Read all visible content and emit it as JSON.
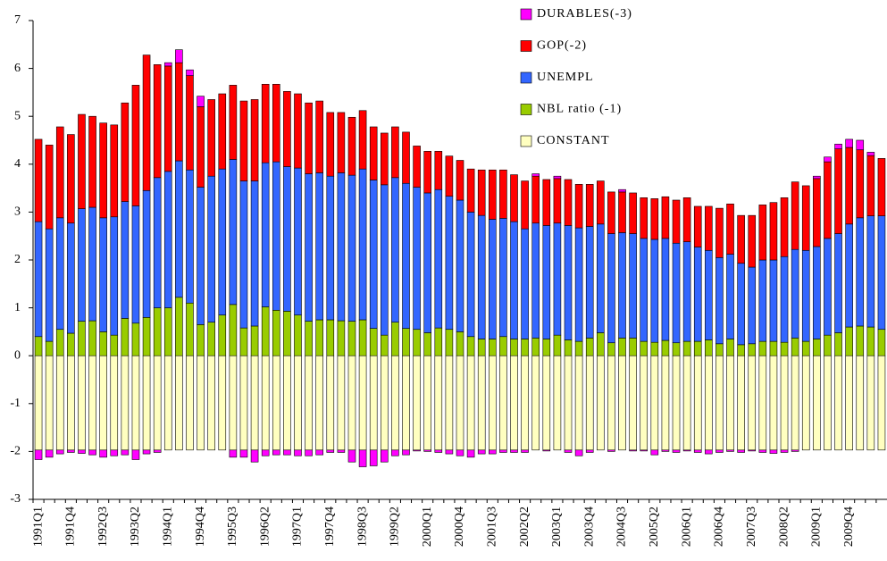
{
  "chart_data": {
    "type": "stacked_bar",
    "categories": [
      "1991Q1",
      null,
      null,
      "1991Q4",
      null,
      null,
      "1992Q3",
      null,
      null,
      "1993Q2",
      null,
      null,
      "1994Q1",
      null,
      null,
      "1994Q4",
      null,
      null,
      "1995Q3",
      null,
      null,
      "1996Q2",
      null,
      null,
      "1997Q1",
      null,
      null,
      "1997Q4",
      null,
      null,
      "1998Q3",
      null,
      null,
      "1999Q2",
      null,
      null,
      "2000Q1",
      null,
      null,
      "2000Q4",
      null,
      null,
      "2001Q3",
      null,
      null,
      "2002Q2",
      null,
      null,
      "2003Q1",
      null,
      null,
      "2003Q4",
      null,
      null,
      "2004Q3",
      null,
      null,
      "2005Q2",
      null,
      null,
      "2006Q1",
      null,
      null,
      "2006Q4",
      null,
      null,
      "2007Q3",
      null,
      null,
      "2008Q2",
      null,
      null,
      "2009Q1",
      null,
      null,
      "2009Q4",
      null,
      null,
      null
    ],
    "series": [
      {
        "name": "CONSTANT",
        "color": "#ffffc0",
        "values": [
          -1.97,
          -1.97,
          -1.97,
          -1.97,
          -1.97,
          -1.97,
          -1.97,
          -1.97,
          -1.97,
          -1.97,
          -1.97,
          -1.97,
          -1.97,
          -1.97,
          -1.97,
          -1.97,
          -1.97,
          -1.97,
          -1.97,
          -1.97,
          -1.97,
          -1.97,
          -1.97,
          -1.97,
          -1.97,
          -1.97,
          -1.97,
          -1.97,
          -1.97,
          -1.97,
          -1.97,
          -1.97,
          -1.97,
          -1.97,
          -1.97,
          -1.97,
          -1.97,
          -1.97,
          -1.97,
          -1.97,
          -1.97,
          -1.97,
          -1.97,
          -1.97,
          -1.97,
          -1.97,
          -1.97,
          -1.97,
          -1.97,
          -1.97,
          -1.97,
          -1.97,
          -1.97,
          -1.97,
          -1.97,
          -1.97,
          -1.97,
          -1.97,
          -1.97,
          -1.97,
          -1.97,
          -1.97,
          -1.97,
          -1.97,
          -1.97,
          -1.97,
          -1.97,
          -1.97,
          -1.97,
          -1.97,
          -1.97,
          -1.97,
          -1.97,
          -1.97,
          -1.97,
          -1.97,
          -1.97,
          -1.97,
          -1.97
        ]
      },
      {
        "name": "NBL ratio (-1)",
        "color": "#99cc00",
        "values": [
          0.4,
          0.3,
          0.55,
          0.47,
          0.72,
          0.73,
          0.5,
          0.43,
          0.78,
          0.68,
          0.8,
          1.0,
          1.0,
          1.22,
          1.1,
          0.65,
          0.7,
          0.85,
          1.07,
          0.58,
          0.62,
          1.02,
          0.95,
          0.93,
          0.85,
          0.72,
          0.75,
          0.75,
          0.73,
          0.72,
          0.75,
          0.57,
          0.43,
          0.7,
          0.57,
          0.55,
          0.48,
          0.58,
          0.55,
          0.5,
          0.4,
          0.35,
          0.35,
          0.4,
          0.35,
          0.35,
          0.37,
          0.35,
          0.43,
          0.33,
          0.3,
          0.37,
          0.48,
          0.27,
          0.37,
          0.37,
          0.3,
          0.28,
          0.32,
          0.27,
          0.3,
          0.3,
          0.33,
          0.25,
          0.35,
          0.23,
          0.25,
          0.3,
          0.3,
          0.28,
          0.37,
          0.3,
          0.35,
          0.43,
          0.48,
          0.6,
          0.62,
          0.6,
          0.55
        ]
      },
      {
        "name": "UNEMPL",
        "color": "#3366ff",
        "values": [
          2.4,
          2.35,
          2.33,
          2.3,
          2.35,
          2.37,
          2.38,
          2.47,
          2.44,
          2.45,
          2.65,
          2.72,
          2.85,
          2.85,
          2.78,
          2.87,
          3.05,
          3.05,
          3.03,
          3.07,
          3.03,
          3.01,
          3.1,
          3.02,
          3.07,
          3.08,
          3.07,
          3.0,
          3.09,
          3.05,
          3.15,
          3.1,
          3.14,
          3.02,
          3.03,
          2.97,
          2.92,
          2.89,
          2.78,
          2.75,
          2.6,
          2.58,
          2.5,
          2.47,
          2.45,
          2.3,
          2.4,
          2.37,
          2.34,
          2.39,
          2.37,
          2.33,
          2.27,
          2.28,
          2.2,
          2.18,
          2.15,
          2.15,
          2.13,
          2.08,
          2.08,
          1.97,
          1.87,
          1.8,
          1.77,
          1.7,
          1.6,
          1.7,
          1.7,
          1.79,
          1.85,
          1.9,
          1.93,
          2.02,
          2.07,
          2.15,
          2.26,
          2.32,
          2.37
        ]
      },
      {
        "name": "GOP(-2)",
        "color": "#ff0000",
        "values": [
          1.72,
          1.75,
          1.9,
          1.85,
          1.97,
          1.9,
          1.98,
          1.92,
          2.06,
          2.52,
          2.83,
          2.36,
          2.2,
          2.05,
          1.97,
          1.68,
          1.6,
          1.57,
          1.55,
          1.67,
          1.7,
          1.64,
          1.62,
          1.57,
          1.55,
          1.48,
          1.5,
          1.33,
          1.26,
          1.21,
          1.22,
          1.11,
          1.08,
          1.06,
          1.07,
          0.86,
          0.87,
          0.8,
          0.84,
          0.83,
          0.9,
          0.95,
          1.03,
          1.01,
          0.98,
          1.0,
          0.98,
          0.96,
          0.93,
          0.96,
          0.91,
          0.88,
          0.9,
          0.87,
          0.85,
          0.85,
          0.85,
          0.85,
          0.87,
          0.9,
          0.92,
          0.85,
          0.92,
          1.03,
          1.05,
          1.0,
          1.08,
          1.15,
          1.2,
          1.23,
          1.41,
          1.35,
          1.42,
          1.6,
          1.77,
          1.6,
          1.42,
          1.26,
          1.2
        ]
      },
      {
        "name": "DURABLES(-3)",
        "color": "#ff00ff",
        "values": [
          -0.2,
          -0.15,
          -0.08,
          -0.05,
          -0.07,
          -0.1,
          -0.15,
          -0.12,
          -0.1,
          -0.2,
          -0.08,
          -0.05,
          0.07,
          0.27,
          0.12,
          0.22,
          0,
          0,
          -0.15,
          -0.15,
          -0.25,
          -0.12,
          -0.1,
          -0.1,
          -0.12,
          -0.12,
          -0.1,
          -0.05,
          -0.05,
          -0.25,
          -0.35,
          -0.33,
          -0.25,
          -0.12,
          -0.1,
          -0.02,
          -0.03,
          -0.05,
          -0.08,
          -0.12,
          -0.15,
          -0.08,
          -0.08,
          -0.05,
          -0.05,
          -0.05,
          0.05,
          -0.02,
          0.05,
          -0.05,
          -0.12,
          -0.05,
          0,
          -0.03,
          0.05,
          -0.02,
          -0.02,
          -0.1,
          -0.03,
          -0.05,
          -0.02,
          -0.05,
          -0.08,
          -0.05,
          -0.03,
          -0.05,
          -0.02,
          -0.05,
          -0.07,
          -0.05,
          -0.03,
          0,
          0.05,
          0.1,
          0.1,
          0.17,
          0.2,
          0.07,
          0
        ]
      }
    ],
    "ylim": [
      -3,
      7
    ],
    "yticks": [
      -3,
      -2,
      -1,
      0,
      1,
      2,
      3,
      4,
      5,
      6,
      7
    ]
  }
}
